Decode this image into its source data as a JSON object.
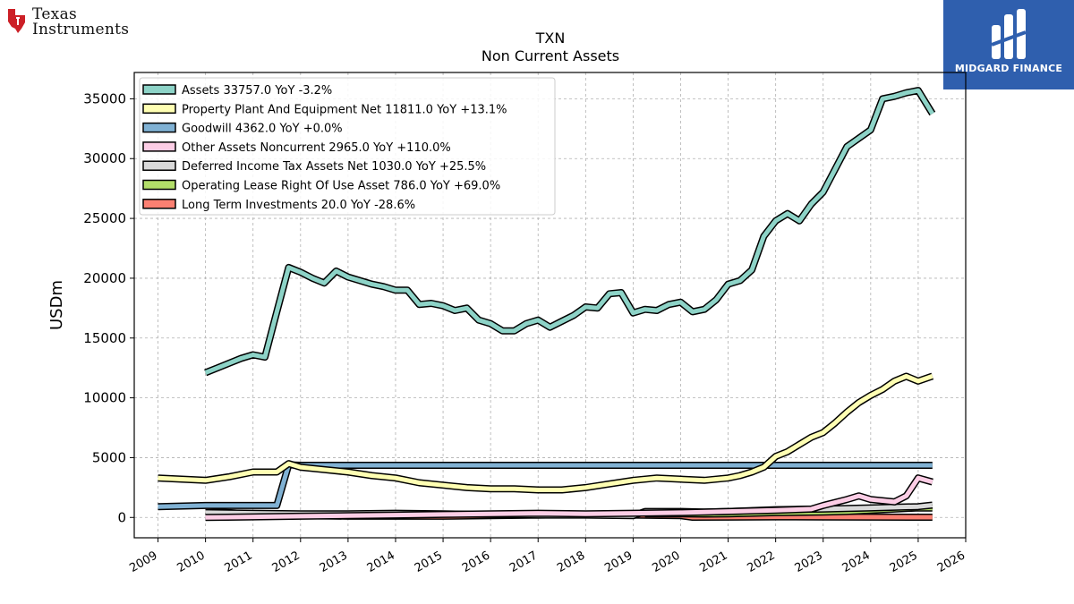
{
  "logos": {
    "left_line1": "Texas",
    "left_line2": "Instruments",
    "right_name": "MIDGARD FINANCE",
    "right_bg": "#2f5fae"
  },
  "chart_data": {
    "type": "line",
    "title": "TXN",
    "subtitle": "Non Current  Assets",
    "xlabel": "",
    "ylabel": "USDm",
    "xlim": [
      2008.5,
      2026.0
    ],
    "ylim": [
      -1700,
      37200
    ],
    "yticks": [
      0,
      5000,
      10000,
      15000,
      20000,
      25000,
      30000,
      35000
    ],
    "xticks": [
      "2009",
      "2010",
      "2011",
      "2012",
      "2013",
      "2014",
      "2015",
      "2016",
      "2017",
      "2018",
      "2019",
      "2020",
      "2021",
      "2022",
      "2023",
      "2024",
      "2025",
      "2026"
    ],
    "grid": true,
    "legend_position": "top-left",
    "series": [
      {
        "name": "Assets",
        "legend": "Assets  33757.0 YoY -3.2%",
        "color": "#8dd3c7",
        "x": [
          2010.0,
          2010.25,
          2010.5,
          2010.75,
          2011.0,
          2011.25,
          2011.5,
          2011.75,
          2012.0,
          2012.25,
          2012.5,
          2012.75,
          2013.0,
          2013.25,
          2013.5,
          2013.75,
          2014.0,
          2014.25,
          2014.5,
          2014.75,
          2015.0,
          2015.25,
          2015.5,
          2015.75,
          2016.0,
          2016.25,
          2016.5,
          2016.75,
          2017.0,
          2017.25,
          2017.5,
          2017.75,
          2018.0,
          2018.25,
          2018.5,
          2018.75,
          2019.0,
          2019.25,
          2019.5,
          2019.75,
          2020.0,
          2020.25,
          2020.5,
          2020.75,
          2021.0,
          2021.25,
          2021.5,
          2021.75,
          2022.0,
          2022.25,
          2022.5,
          2022.75,
          2023.0,
          2023.25,
          2023.5,
          2023.75,
          2024.0,
          2024.25,
          2024.5,
          2024.75,
          2025.0,
          2025.3
        ],
        "y": [
          12100,
          12500,
          12900,
          13300,
          13600,
          13400,
          17200,
          20900,
          20500,
          20000,
          19600,
          20600,
          20100,
          19800,
          19500,
          19300,
          19000,
          19000,
          17800,
          17900,
          17700,
          17300,
          17500,
          16500,
          16200,
          15600,
          15600,
          16200,
          16500,
          15900,
          16400,
          16900,
          17600,
          17500,
          18700,
          18800,
          17100,
          17400,
          17300,
          17800,
          18000,
          17200,
          17400,
          18200,
          19500,
          19800,
          20700,
          23500,
          24800,
          25400,
          24800,
          26200,
          27200,
          29100,
          31000,
          31700,
          32400,
          35000,
          35200,
          35500,
          35700,
          33757
        ]
      },
      {
        "name": "Property Plant And Equipment Net",
        "legend": "Property Plant And Equipment Net  11811.0 YoY +13.1%",
        "color": "#ffffb3",
        "x": [
          2009.0,
          2009.5,
          2010.0,
          2010.5,
          2011.0,
          2011.25,
          2011.5,
          2011.75,
          2012.0,
          2012.5,
          2013.0,
          2013.5,
          2014.0,
          2014.5,
          2015.0,
          2015.5,
          2016.0,
          2016.5,
          2017.0,
          2017.5,
          2018.0,
          2018.5,
          2019.0,
          2019.5,
          2020.0,
          2020.5,
          2021.0,
          2021.25,
          2021.5,
          2021.75,
          2022.0,
          2022.25,
          2022.5,
          2022.75,
          2023.0,
          2023.25,
          2023.5,
          2023.75,
          2024.0,
          2024.25,
          2024.5,
          2024.75,
          2025.0,
          2025.3
        ],
        "y": [
          3300,
          3200,
          3100,
          3400,
          3800,
          3800,
          3800,
          4500,
          4200,
          4000,
          3800,
          3500,
          3300,
          2900,
          2700,
          2500,
          2400,
          2400,
          2300,
          2300,
          2500,
          2800,
          3100,
          3300,
          3200,
          3100,
          3300,
          3500,
          3800,
          4200,
          5100,
          5500,
          6100,
          6700,
          7100,
          7900,
          8800,
          9600,
          10200,
          10700,
          11400,
          11800,
          11400,
          11811
        ]
      },
      {
        "name": "Goodwill",
        "legend": "Goodwill  4362.0 YoY +0.0%",
        "color": "#80b1d3",
        "x": [
          2009.0,
          2010.0,
          2010.5,
          2011.0,
          2011.5,
          2011.75,
          2012.0,
          2013.0,
          2015.0,
          2020.0,
          2025.3
        ],
        "y": [
          900,
          1000,
          1000,
          1000,
          1000,
          4400,
          4362,
          4362,
          4362,
          4362,
          4362
        ]
      },
      {
        "name": "Other Assets Noncurrent",
        "legend": "Other Assets Noncurrent  2965.0 YoY +110.0%",
        "color": "#fccde5",
        "x": [
          2010.0,
          2011.0,
          2012.0,
          2013.0,
          2014.0,
          2015.0,
          2016.0,
          2017.0,
          2018.0,
          2019.0,
          2020.0,
          2021.0,
          2022.0,
          2022.75,
          2023.0,
          2023.5,
          2023.75,
          2024.0,
          2024.5,
          2024.75,
          2025.0,
          2025.3
        ],
        "y": [
          0,
          50,
          100,
          150,
          200,
          250,
          300,
          350,
          300,
          350,
          400,
          500,
          600,
          700,
          1000,
          1500,
          1800,
          1500,
          1300,
          1800,
          3300,
          2965
        ]
      },
      {
        "name": "Deferred Income Tax Assets Net",
        "legend": "Deferred Income Tax Assets Net  1030.0 YoY +25.5%",
        "color": "#d9d9d9",
        "x": [
          2010.0,
          2011.0,
          2012.0,
          2013.0,
          2014.0,
          2015.0,
          2016.0,
          2017.0,
          2018.0,
          2019.0,
          2019.25,
          2020.0,
          2020.5,
          2021.0,
          2022.0,
          2023.0,
          2024.0,
          2025.0,
          2025.3
        ],
        "y": [
          400,
          350,
          300,
          300,
          350,
          300,
          250,
          200,
          200,
          150,
          500,
          500,
          450,
          500,
          650,
          700,
          800,
          900,
          1030
        ]
      },
      {
        "name": "Operating Lease Right Of Use Asset",
        "legend": "Operating Lease Right Of Use Asset  786.0 YoY +69.0%",
        "color": "#b3de69",
        "x": [
          2019.25,
          2020.0,
          2020.5,
          2021.0,
          2022.0,
          2023.0,
          2023.5,
          2024.0,
          2024.5,
          2025.0,
          2025.3
        ],
        "y": [
          300,
          300,
          280,
          300,
          400,
          450,
          500,
          600,
          700,
          800,
          786
        ]
      },
      {
        "name": "Long Term Investments",
        "legend": "Long Term Investments  20.0 YoY -28.6%",
        "color": "#fb8072",
        "x": [
          2010.0,
          2010.5,
          2011.0,
          2011.5,
          2012.0,
          2013.0,
          2014.0,
          2015.0,
          2016.0,
          2017.0,
          2018.0,
          2019.0,
          2020.0,
          2020.25,
          2021.0,
          2022.0,
          2023.0,
          2024.0,
          2025.3
        ],
        "y": [
          550,
          400,
          250,
          200,
          150,
          100,
          100,
          100,
          150,
          200,
          250,
          200,
          150,
          20,
          30,
          50,
          40,
          30,
          20
        ]
      }
    ]
  }
}
